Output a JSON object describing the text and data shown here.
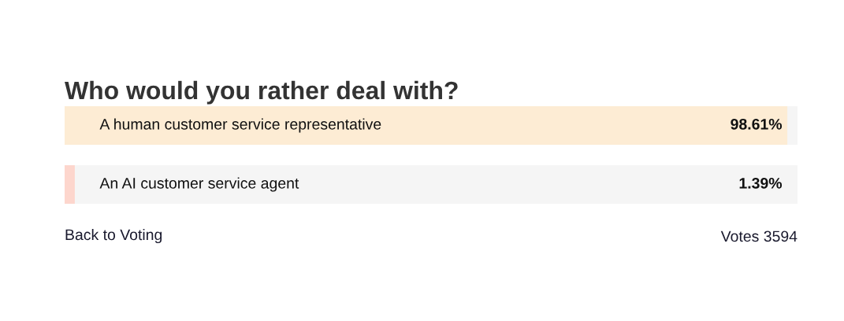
{
  "chart_data": {
    "type": "bar",
    "orientation": "horizontal",
    "title": "Who would you rather deal with?",
    "categories": [
      "A human customer service representative",
      "An AI customer service agent"
    ],
    "values": [
      98.61,
      1.39
    ],
    "colors": [
      "#fdecd4",
      "#fdd6cd"
    ],
    "value_labels": [
      "98.61%",
      "1.39%"
    ],
    "xlim": [
      0,
      100
    ],
    "tick_labels": false,
    "annotations": [
      "Back to Voting",
      "Votes 3594"
    ]
  }
}
